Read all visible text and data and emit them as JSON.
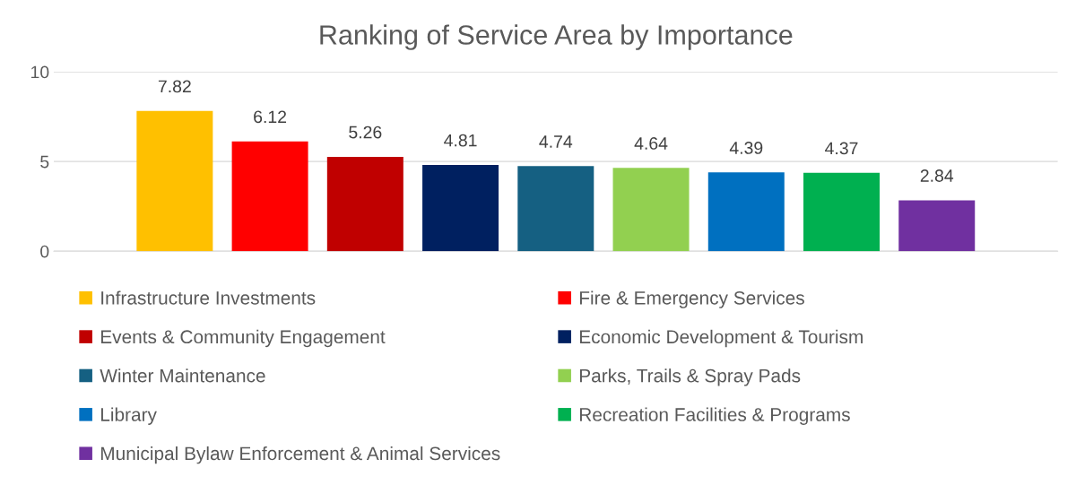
{
  "chart_data": {
    "type": "bar",
    "title": "Ranking of Service Area by Importance",
    "categories": [
      null
    ],
    "series": [
      {
        "name": "Infrastructure Investments",
        "color": "#ffc000",
        "values": [
          7.82
        ]
      },
      {
        "name": "Fire & Emergency Services",
        "color": "#ff0000",
        "values": [
          6.12
        ]
      },
      {
        "name": "Events & Community Engagement",
        "color": "#c00000",
        "values": [
          5.26
        ]
      },
      {
        "name": "Economic Development & Tourism",
        "color": "#002060",
        "values": [
          4.81
        ]
      },
      {
        "name": "Winter Maintenance",
        "color": "#156082",
        "values": [
          4.74
        ]
      },
      {
        "name": "Parks, Trails & Spray Pads",
        "color": "#92d050",
        "values": [
          4.64
        ]
      },
      {
        "name": "Library",
        "color": "#0070c0",
        "values": [
          4.39
        ]
      },
      {
        "name": "Recreation Facilities & Programs",
        "color": "#00b050",
        "values": [
          4.37
        ]
      },
      {
        "name": "Municipal Bylaw Enforcement & Animal Services",
        "color": "#7030a0",
        "values": [
          2.84
        ]
      }
    ],
    "ylim": [
      0,
      10
    ],
    "yticks": [
      0,
      5,
      10
    ],
    "grid": "y",
    "legend": "bottom",
    "data_labels": true
  }
}
